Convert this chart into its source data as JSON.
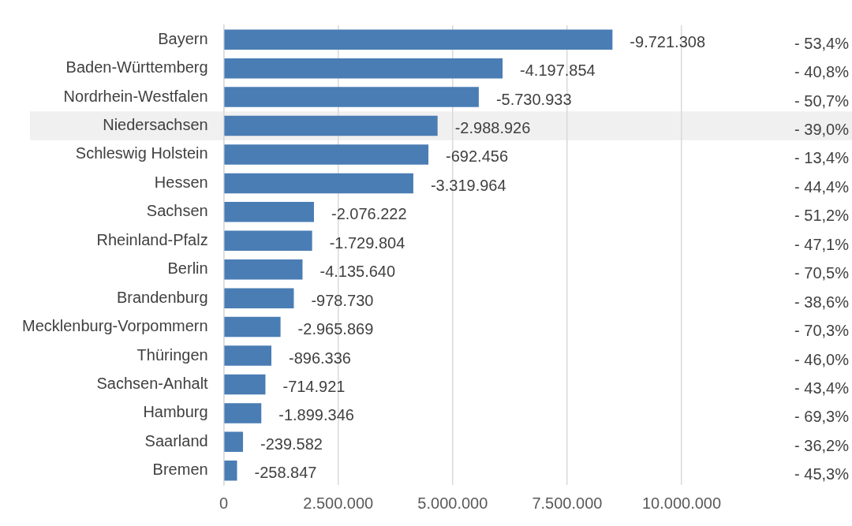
{
  "chart_data": {
    "type": "bar",
    "orientation": "horizontal",
    "categories": [
      "Bayern",
      "Baden-Württemberg",
      "Nordrhein-Westfalen",
      "Niedersachsen",
      "Schleswig Holstein",
      "Hessen",
      "Sachsen",
      "Rheinland-Pfalz",
      "Berlin",
      "Brandenburg",
      "Mecklenburg-Vorpommern",
      "Thüringen",
      "Sachsen-Anhalt",
      "Hamburg",
      "Saarland",
      "Bremen"
    ],
    "values": [
      8490000,
      6090000,
      5570000,
      4670000,
      4470000,
      4140000,
      1970000,
      1930000,
      1720000,
      1530000,
      1240000,
      1040000,
      910000,
      820000,
      420000,
      290000
    ],
    "color": "#4a7db4",
    "xlim": [
      0,
      10000000
    ],
    "xticks": [
      {
        "value": 0,
        "label": "0"
      },
      {
        "value": 2500000,
        "label": "2.500.000"
      },
      {
        "value": 5000000,
        "label": "5.000.000"
      },
      {
        "value": 7500000,
        "label": "7.500.000"
      },
      {
        "value": 10000000,
        "label": "10.000.000"
      }
    ],
    "grid": "x",
    "bands": [
      {
        "axis": "y",
        "from": "Niedersachsen",
        "to": "Niedersachsen",
        "color": "#f0f0f0"
      }
    ],
    "annotations": [
      "-9.721.308",
      "-4.197.854",
      "-5.730.933",
      "-2.988.926",
      "-692.456",
      "-3.319.964",
      "-2.076.222",
      "-1.729.804",
      "-4.135.640",
      "-978.730",
      "-2.965.869",
      "-896.336",
      "-714.921",
      "-1.899.346",
      "-239.582",
      "-258.847",
      "- 53,4%",
      "- 40,8%",
      "- 50,7%",
      "- 39,0%",
      "- 13,4%",
      "- 44,4%",
      "- 51,2%",
      "- 47,1%",
      "- 70,5%",
      "- 38,6%",
      "- 70,3%",
      "- 46,0%",
      "- 43,4%",
      "- 69,3%",
      "- 36,2%",
      "- 45,3%"
    ]
  }
}
